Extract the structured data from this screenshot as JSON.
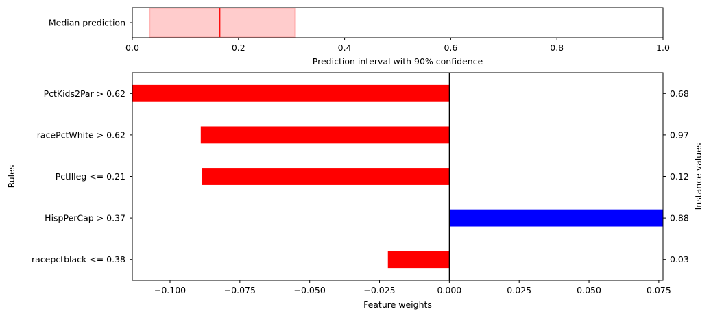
{
  "chart_data": [
    {
      "type": "interval",
      "category": "Median prediction",
      "median": 0.165,
      "interval": [
        0.033,
        0.306
      ],
      "xlim": [
        0,
        1
      ],
      "xticks": [
        "0.0",
        "0.2",
        "0.4",
        "0.6",
        "0.8",
        "1.0"
      ],
      "xlabel": "Prediction interval with 90% confidence",
      "colors": {
        "interval_fill": "#ffcccc",
        "median_line": "#ff0000"
      }
    },
    {
      "type": "bar",
      "orientation": "horizontal",
      "ylabel": "Rules",
      "xlabel": "Feature weights",
      "right_ylabel": "Instance values",
      "xlim": [
        -0.1135,
        0.0765
      ],
      "xticks": [
        "−0.100",
        "−0.075",
        "−0.050",
        "−0.025",
        "0.000",
        "0.025",
        "0.050",
        "0.075"
      ],
      "rules": [
        {
          "label": "PctKids2Par > 0.62",
          "weight": -0.1135,
          "instance": "0.68"
        },
        {
          "label": "racePctWhite > 0.62",
          "weight": -0.089,
          "instance": "0.97"
        },
        {
          "label": "PctIlleg <= 0.21",
          "weight": -0.0885,
          "instance": "0.12"
        },
        {
          "label": "HispPerCap > 0.37",
          "weight": 0.0765,
          "instance": "0.88"
        },
        {
          "label": "racepctblack <= 0.38",
          "weight": -0.022,
          "instance": "0.03"
        }
      ],
      "colors": {
        "negative": "#ff0000",
        "positive": "#0000ff"
      }
    }
  ]
}
